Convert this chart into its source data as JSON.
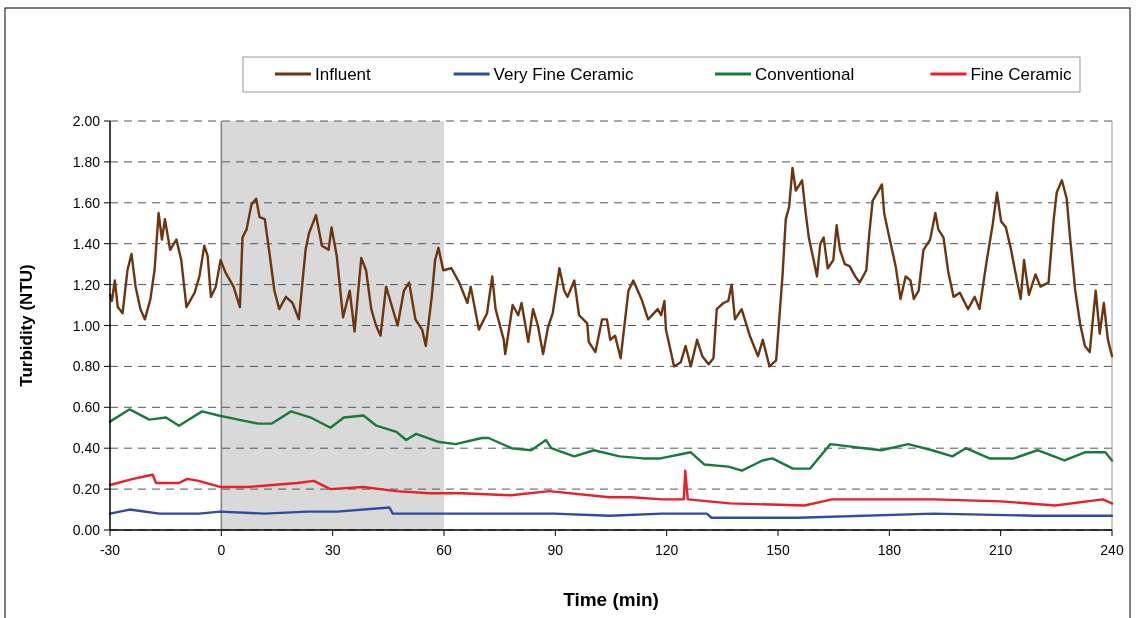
{
  "chart_data": {
    "type": "line",
    "xlabel": "Time (min)",
    "ylabel": "Turbidity (NTU)",
    "xlim": [
      -30,
      240
    ],
    "xticks": [
      -30,
      0,
      30,
      60,
      90,
      120,
      150,
      180,
      210,
      240
    ],
    "ylim": [
      0,
      2
    ],
    "yticks": [
      {
        "value": 0,
        "label": "0.00"
      },
      {
        "value": 0.2,
        "label": "0.20"
      },
      {
        "value": 0.4,
        "label": "0.40"
      },
      {
        "value": 0.6,
        "label": "0.60"
      },
      {
        "value": 0.8,
        "label": "0.80"
      },
      {
        "value": 1,
        "label": "1.00"
      },
      {
        "value": 1.2,
        "label": "1.20"
      },
      {
        "value": 1.4,
        "label": "1.40"
      },
      {
        "value": 1.6,
        "label": "1.60"
      },
      {
        "value": 1.8,
        "label": "1.80"
      },
      {
        "value": 2,
        "label": "2.00"
      }
    ],
    "grid": "y",
    "legend": "top",
    "line_style": "solid",
    "bands": [
      {
        "axis": "x",
        "from": 0,
        "to": 60,
        "color": "#d9d9d9"
      }
    ],
    "ref_lines": [
      {
        "axis": "x",
        "value": 0,
        "color": "#808080"
      }
    ],
    "series": [
      {
        "name": "Influent",
        "color": "#6b3510",
        "x": [
          -30,
          -29.5,
          -28.7,
          -27.9,
          -26.6,
          -25.3,
          -24.2,
          -23.1,
          -21.8,
          -20.6,
          -19.1,
          -18,
          -16.9,
          -16,
          -15.2,
          -13.8,
          -12.1,
          -10.8,
          -9.4,
          -7.2,
          -5.9,
          -4.6,
          -3.7,
          -2.8,
          -1.5,
          -0.2,
          1.1,
          3.3,
          5,
          5.7,
          6.8,
          8.1,
          9.4,
          10.3,
          11.7,
          13,
          14.3,
          15.6,
          17.4,
          19.2,
          20.9,
          22.7,
          23.6,
          25.5,
          27.1,
          28.9,
          29.7,
          31.1,
          32.8,
          34.6,
          35.9,
          37.7,
          39,
          40.4,
          41.7,
          42.9,
          44.4,
          45.7,
          47.5,
          49.2,
          50.6,
          52.3,
          54.1,
          55.1,
          56.7,
          57.6,
          58.5,
          59.8,
          62,
          64.1,
          66.3,
          67.2,
          69.4,
          71.6,
          73,
          73.9,
          76.1,
          76.5,
          78.5,
          80,
          80.9,
          82.7,
          84,
          85.3,
          86.7,
          88,
          89.3,
          91.1,
          92.4,
          93.3,
          95.1,
          96.4,
          98.6,
          99,
          100.8,
          102.6,
          103.9,
          104.8,
          106.1,
          107.6,
          109.7,
          111,
          113.2,
          115,
          117.6,
          118.5,
          119.4,
          119.8,
          122,
          123.8,
          125.1,
          126.5,
          128.2,
          129.6,
          131.3,
          132.6,
          133.5,
          135.3,
          136.6,
          137.5,
          138.4,
          140.2,
          142.4,
          144.6,
          145.9,
          147.7,
          149.5,
          151.2,
          152.1,
          153,
          153.9,
          154.8,
          156.5,
          157.4,
          158.3,
          159.6,
          160.5,
          161.4,
          162.3,
          163.4,
          164.9,
          165.8,
          166.7,
          168,
          169.3,
          170.8,
          172,
          173.8,
          174.6,
          175.5,
          176.8,
          178,
          178.6,
          180,
          181.7,
          183,
          184.4,
          185.7,
          186.6,
          187.9,
          189.2,
          191,
          192.4,
          193.2,
          194.6,
          195.9,
          197.3,
          199,
          201.2,
          203,
          204.3,
          206.1,
          207.9,
          209,
          210.1,
          211.4,
          212.8,
          214.5,
          215.4,
          216.3,
          217.6,
          219.4,
          220.7,
          222.9,
          224.3,
          225.1,
          226.5,
          227.8,
          228.7,
          230.1,
          231.4,
          232.7,
          234,
          235.6,
          236.7,
          237.8,
          238.9,
          240
        ],
        "values": [
          1.15,
          1.12,
          1.22,
          1.09,
          1.06,
          1.27,
          1.35,
          1.19,
          1.08,
          1.03,
          1.13,
          1.27,
          1.55,
          1.42,
          1.52,
          1.37,
          1.42,
          1.32,
          1.09,
          1.16,
          1.24,
          1.39,
          1.34,
          1.14,
          1.19,
          1.32,
          1.26,
          1.19,
          1.09,
          1.43,
          1.47,
          1.59,
          1.62,
          1.53,
          1.52,
          1.35,
          1.17,
          1.08,
          1.14,
          1.11,
          1.03,
          1.37,
          1.45,
          1.54,
          1.39,
          1.37,
          1.48,
          1.34,
          1.04,
          1.17,
          0.97,
          1.33,
          1.27,
          1.08,
          1,
          0.95,
          1.19,
          1.11,
          1,
          1.17,
          1.21,
          1.03,
          0.98,
          0.9,
          1.14,
          1.32,
          1.38,
          1.27,
          1.28,
          1.21,
          1.11,
          1.19,
          0.98,
          1.06,
          1.24,
          1.08,
          0.93,
          0.86,
          1.1,
          1.05,
          1.11,
          0.92,
          1.08,
          1,
          0.86,
          0.99,
          1.06,
          1.28,
          1.17,
          1.14,
          1.22,
          1.05,
          1.01,
          0.92,
          0.87,
          1.03,
          1.03,
          0.93,
          0.95,
          0.84,
          1.17,
          1.22,
          1.13,
          1.03,
          1.08,
          1.05,
          1.12,
          0.98,
          0.8,
          0.82,
          0.9,
          0.8,
          0.93,
          0.85,
          0.81,
          0.84,
          1.08,
          1.11,
          1.12,
          1.2,
          1.03,
          1.08,
          0.95,
          0.85,
          0.93,
          0.8,
          0.83,
          1.24,
          1.52,
          1.58,
          1.77,
          1.66,
          1.71,
          1.56,
          1.43,
          1.32,
          1.24,
          1.4,
          1.43,
          1.28,
          1.32,
          1.49,
          1.37,
          1.3,
          1.29,
          1.24,
          1.21,
          1.27,
          1.45,
          1.61,
          1.65,
          1.69,
          1.55,
          1.43,
          1.29,
          1.13,
          1.24,
          1.22,
          1.13,
          1.17,
          1.37,
          1.42,
          1.55,
          1.47,
          1.43,
          1.26,
          1.14,
          1.16,
          1.08,
          1.14,
          1.08,
          1.3,
          1.5,
          1.65,
          1.51,
          1.48,
          1.37,
          1.21,
          1.13,
          1.32,
          1.15,
          1.25,
          1.19,
          1.21,
          1.52,
          1.65,
          1.71,
          1.62,
          1.43,
          1.17,
          1.01,
          0.9,
          0.87,
          1.17,
          0.96,
          1.11,
          0.93,
          0.85
        ]
      },
      {
        "name": "Very Fine Ceramic",
        "color": "#2e4ca0",
        "x": [
          -30,
          -24.7,
          -16.7,
          -6,
          -0.3,
          11.7,
          23.2,
          31.1,
          45.3,
          46.2,
          56,
          73.7,
          89.6,
          104.6,
          118.9,
          130.8,
          132.1,
          155.4,
          191.9,
          219.2,
          240
        ],
        "values": [
          0.08,
          0.1,
          0.08,
          0.08,
          0.09,
          0.08,
          0.09,
          0.09,
          0.11,
          0.08,
          0.08,
          0.08,
          0.08,
          0.07,
          0.08,
          0.08,
          0.06,
          0.06,
          0.08,
          0.07,
          0.07
        ]
      },
      {
        "name": "Conventional",
        "color": "#1a7a3a",
        "x": [
          -30,
          -24.7,
          -19.4,
          -14.9,
          -11.4,
          -5.2,
          -0.7,
          4.6,
          9.9,
          13.5,
          18.8,
          24.1,
          29.4,
          33,
          38.3,
          41.8,
          47.2,
          49.8,
          52.5,
          58.7,
          63.1,
          70.2,
          72,
          78.2,
          83.5,
          87.5,
          88.9,
          95.1,
          100.4,
          107.3,
          113.7,
          118.3,
          126.5,
          130.2,
          136.6,
          140.3,
          145.8,
          148.5,
          154,
          158.6,
          164.1,
          168.6,
          173.2,
          177.8,
          185.1,
          191.5,
          197,
          200.6,
          207,
          213.5,
          219.9,
          227.2,
          232.7,
          238.2,
          240
        ],
        "values": [
          0.53,
          0.59,
          0.54,
          0.55,
          0.51,
          0.58,
          0.56,
          0.54,
          0.52,
          0.52,
          0.58,
          0.55,
          0.5,
          0.55,
          0.56,
          0.51,
          0.48,
          0.44,
          0.47,
          0.43,
          0.42,
          0.45,
          0.45,
          0.4,
          0.39,
          0.44,
          0.4,
          0.36,
          0.39,
          0.36,
          0.35,
          0.35,
          0.38,
          0.32,
          0.31,
          0.29,
          0.34,
          0.35,
          0.3,
          0.3,
          0.42,
          0.41,
          0.4,
          0.39,
          0.42,
          0.39,
          0.36,
          0.4,
          0.35,
          0.35,
          0.39,
          0.34,
          0.38,
          0.38,
          0.34
        ]
      },
      {
        "name": "Fine Ceramic",
        "color": "#e8202a",
        "x": [
          -30,
          -23.8,
          -18.5,
          -17.6,
          -11.4,
          -9.2,
          -6.1,
          -0.1,
          7.2,
          20.5,
          24.9,
          29.4,
          38.2,
          47.1,
          56,
          64.8,
          78.1,
          88.3,
          104.6,
          110.5,
          118.9,
          124.6,
          125,
          125.7,
          137.1,
          157.2,
          164.5,
          178.2,
          191.9,
          210.1,
          224.7,
          237.5,
          240
        ],
        "values": [
          0.22,
          0.25,
          0.27,
          0.23,
          0.23,
          0.25,
          0.24,
          0.21,
          0.21,
          0.23,
          0.24,
          0.2,
          0.21,
          0.19,
          0.18,
          0.18,
          0.17,
          0.19,
          0.16,
          0.16,
          0.15,
          0.15,
          0.29,
          0.15,
          0.13,
          0.12,
          0.15,
          0.15,
          0.15,
          0.14,
          0.12,
          0.15,
          0.13
        ]
      }
    ]
  }
}
